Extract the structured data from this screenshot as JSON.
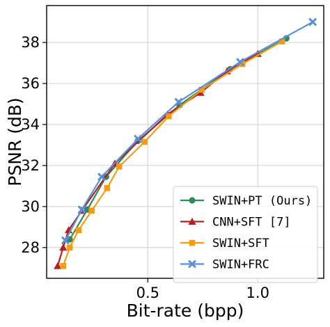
{
  "chart_data": {
    "type": "line",
    "title": "",
    "xlabel": "Bit-rate (bpp)",
    "ylabel": "PSNR (dB)",
    "xlim": [
      0.04,
      1.3
    ],
    "ylim": [
      26.5,
      39.8
    ],
    "xticks": [
      0.5,
      1.0
    ],
    "xtick_labels": [
      "0.5",
      "1.0"
    ],
    "yticks": [
      28,
      30,
      32,
      34,
      36,
      38
    ],
    "ytick_labels": [
      "28",
      "30",
      "32",
      "34",
      "36",
      "38"
    ],
    "grid": true,
    "legend_position": "lower-right",
    "series": [
      {
        "name": "SWIN+PT (Ours)",
        "color": "#2e8b57",
        "marker": "circle",
        "x": [
          0.145,
          0.225,
          0.31,
          0.455,
          0.645,
          0.875,
          1.13
        ],
        "y": [
          28.4,
          29.85,
          31.45,
          33.2,
          34.95,
          36.7,
          38.2
        ]
      },
      {
        "name": "CNN+SFT [7]",
        "color": "#b22222",
        "marker": "triangle",
        "x": [
          0.09,
          0.115,
          0.14,
          0.2,
          0.35,
          0.59,
          0.74,
          0.86,
          1.0
        ],
        "y": [
          27.1,
          28.0,
          28.85,
          29.8,
          32.1,
          34.5,
          35.55,
          36.6,
          37.45
        ]
      },
      {
        "name": "SWIN+SFT",
        "color": "#f39c12",
        "marker": "square",
        "x": [
          0.115,
          0.145,
          0.185,
          0.245,
          0.315,
          0.37,
          0.485,
          0.595,
          0.745,
          0.93,
          1.11
        ],
        "y": [
          27.1,
          28.0,
          28.85,
          29.8,
          30.9,
          31.95,
          33.15,
          34.4,
          35.7,
          36.95,
          38.05
        ]
      },
      {
        "name": "SWIN+FRC",
        "color": "#5b8fd9",
        "marker": "x",
        "x": [
          0.125,
          0.2,
          0.29,
          0.455,
          0.64,
          0.92,
          1.25
        ],
        "y": [
          28.35,
          29.85,
          31.45,
          33.3,
          35.1,
          37.05,
          39.0
        ]
      }
    ]
  }
}
